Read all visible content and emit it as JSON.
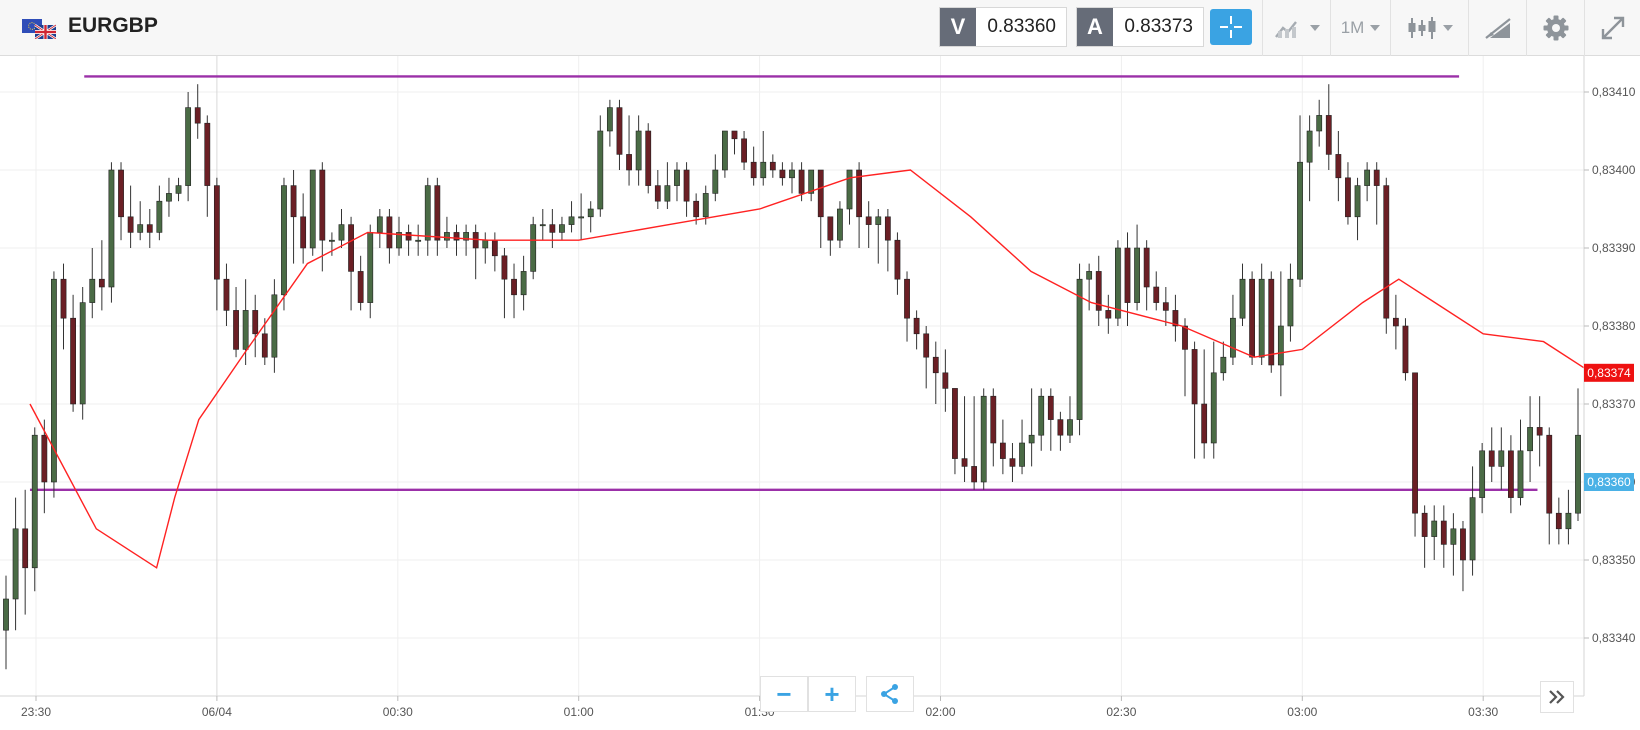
{
  "header": {
    "symbol": "EURGBP",
    "sell": {
      "label": "V",
      "price": "0.83360"
    },
    "buy": {
      "label": "A",
      "price": "0.83373"
    },
    "timeframe": "1M",
    "icons": [
      "flag-eu-uk-icon",
      "crosshair-icon",
      "chart-type-icon",
      "candlestick-icon",
      "draw-tools-icon",
      "gear-icon",
      "fullscreen-icon"
    ]
  },
  "controls": {
    "zoom_out": "−",
    "zoom_in": "+"
  },
  "colors": {
    "accent": "#3aa3e3",
    "bull_candle": "#4a6b45",
    "bear_candle": "#6b1f25",
    "moving_average": "#ff2222",
    "horizontal_lines": "#9b30a8",
    "ask_tag": "#ee1111",
    "bid_tag": "#4ab1e6"
  },
  "chart_data": {
    "type": "candlestick",
    "instrument": "EURGBP",
    "ylim": [
      0.83333,
      0.83416
    ],
    "y_ticks": [
      "0,83340",
      "0,83350",
      "0,83360",
      "0,83370",
      "0,83380",
      "0,83390",
      "0,83400",
      "0,83410"
    ],
    "x_ticks": [
      "23:30",
      "06/04",
      "00:30",
      "01:00",
      "01:30",
      "02:00",
      "02:30",
      "03:00",
      "03:30"
    ],
    "current_price_tags": [
      {
        "label": "0,83374",
        "value": 0.83374,
        "color": "#ee1111"
      },
      {
        "label": "0,83360",
        "value": 0.8336,
        "color": "#4ab1e6"
      }
    ],
    "horizontal_lines": [
      {
        "value": 0.83412,
        "from": "23:38",
        "to": "03:26"
      },
      {
        "value": 0.83359,
        "from": "23:29",
        "to": "03:39"
      }
    ],
    "moving_average": [
      [
        "23:29",
        0.8337
      ],
      [
        "23:40",
        0.83354
      ],
      [
        "23:50",
        0.83349
      ],
      [
        "23:53",
        0.83358
      ],
      [
        "23:57",
        0.83368
      ],
      [
        "00:05",
        0.83377
      ],
      [
        "00:15",
        0.83388
      ],
      [
        "00:25",
        0.83392
      ],
      [
        "00:45",
        0.83391
      ],
      [
        "01:00",
        0.83391
      ],
      [
        "01:15",
        0.83393
      ],
      [
        "01:30",
        0.83395
      ],
      [
        "01:45",
        0.83399
      ],
      [
        "01:55",
        0.834
      ],
      [
        "02:05",
        0.83394
      ],
      [
        "02:15",
        0.83387
      ],
      [
        "02:25",
        0.83383
      ],
      [
        "02:40",
        0.8338
      ],
      [
        "02:52",
        0.83376
      ],
      [
        "03:00",
        0.83377
      ],
      [
        "03:10",
        0.83383
      ],
      [
        "03:16",
        0.83386
      ],
      [
        "03:22",
        0.83383
      ],
      [
        "03:30",
        0.83379
      ],
      [
        "03:40",
        0.83378
      ],
      [
        "03:48",
        0.83374
      ]
    ],
    "candles_source": "1-minute OHLC approximated from the plotted candles",
    "candles": [
      [
        0.83341,
        0.83345,
        0.83336,
        0.83348
      ],
      [
        0.83345,
        0.83354,
        0.83341,
        0.83358
      ],
      [
        0.83354,
        0.83349,
        0.83343,
        0.83359
      ],
      [
        0.83349,
        0.83366,
        0.83346,
        0.83367
      ],
      [
        0.83366,
        0.8336,
        0.83356,
        0.83368
      ],
      [
        0.8336,
        0.83386,
        0.83358,
        0.83387
      ],
      [
        0.83386,
        0.83381,
        0.83377,
        0.83388
      ],
      [
        0.83381,
        0.8337,
        0.83369,
        0.83384
      ],
      [
        0.8337,
        0.83383,
        0.83368,
        0.83385
      ],
      [
        0.83383,
        0.83386,
        0.83381,
        0.8339
      ],
      [
        0.83386,
        0.83385,
        0.83382,
        0.83391
      ],
      [
        0.83385,
        0.834,
        0.83383,
        0.83401
      ],
      [
        0.834,
        0.83394,
        0.83391,
        0.83401
      ],
      [
        0.83394,
        0.83392,
        0.8339,
        0.83398
      ],
      [
        0.83392,
        0.83393,
        0.83391,
        0.83396
      ],
      [
        0.83393,
        0.83392,
        0.8339,
        0.83395
      ],
      [
        0.83392,
        0.83396,
        0.83391,
        0.83398
      ],
      [
        0.83396,
        0.83397,
        0.83394,
        0.83399
      ],
      [
        0.83397,
        0.83398,
        0.83396,
        0.83399
      ],
      [
        0.83398,
        0.83408,
        0.83396,
        0.8341
      ],
      [
        0.83408,
        0.83406,
        0.83404,
        0.83411
      ],
      [
        0.83406,
        0.83398,
        0.83394,
        0.83407
      ],
      [
        0.83398,
        0.83386,
        0.83382,
        0.83399
      ],
      [
        0.83386,
        0.83382,
        0.8338,
        0.83388
      ],
      [
        0.83382,
        0.83377,
        0.83376,
        0.83385
      ],
      [
        0.83377,
        0.83382,
        0.83375,
        0.83386
      ],
      [
        0.83382,
        0.83379,
        0.83376,
        0.83384
      ],
      [
        0.83379,
        0.83376,
        0.83375,
        0.83381
      ],
      [
        0.83376,
        0.83384,
        0.83374,
        0.83386
      ],
      [
        0.83384,
        0.83398,
        0.83382,
        0.83399
      ],
      [
        0.83398,
        0.83394,
        0.83388,
        0.834
      ],
      [
        0.83394,
        0.8339,
        0.83388,
        0.83397
      ],
      [
        0.8339,
        0.834,
        0.83389,
        0.834
      ],
      [
        0.834,
        0.83391,
        0.83387,
        0.83401
      ],
      [
        0.83391,
        0.83391,
        0.83389,
        0.83392
      ],
      [
        0.83391,
        0.83393,
        0.8339,
        0.83395
      ],
      [
        0.83393,
        0.83387,
        0.83382,
        0.83394
      ],
      [
        0.83387,
        0.83383,
        0.83382,
        0.83389
      ],
      [
        0.83383,
        0.83392,
        0.83381,
        0.83393
      ],
      [
        0.83392,
        0.83394,
        0.8339,
        0.83395
      ],
      [
        0.83394,
        0.8339,
        0.83388,
        0.83395
      ],
      [
        0.8339,
        0.83392,
        0.83389,
        0.83394
      ],
      [
        0.83392,
        0.83391,
        0.83389,
        0.83393
      ],
      [
        0.83391,
        0.83391,
        0.83389,
        0.83393
      ],
      [
        0.83391,
        0.83398,
        0.83389,
        0.83399
      ],
      [
        0.83398,
        0.83391,
        0.83389,
        0.83399
      ],
      [
        0.83391,
        0.83392,
        0.8339,
        0.83394
      ],
      [
        0.83392,
        0.83391,
        0.83389,
        0.83393
      ],
      [
        0.83391,
        0.83392,
        0.83389,
        0.83393
      ],
      [
        0.83392,
        0.8339,
        0.83386,
        0.83393
      ],
      [
        0.8339,
        0.83391,
        0.83388,
        0.83392
      ],
      [
        0.83391,
        0.83389,
        0.83387,
        0.83392
      ],
      [
        0.83389,
        0.83386,
        0.83381,
        0.8339
      ],
      [
        0.83386,
        0.83384,
        0.83381,
        0.83388
      ],
      [
        0.83384,
        0.83387,
        0.83382,
        0.83389
      ],
      [
        0.83387,
        0.83393,
        0.83386,
        0.83394
      ],
      [
        0.83393,
        0.83393,
        0.83391,
        0.83395
      ],
      [
        0.83393,
        0.83392,
        0.8339,
        0.83395
      ],
      [
        0.83392,
        0.83393,
        0.83391,
        0.83394
      ],
      [
        0.83393,
        0.83394,
        0.83392,
        0.83396
      ],
      [
        0.83394,
        0.83394,
        0.83391,
        0.83397
      ],
      [
        0.83394,
        0.83395,
        0.83392,
        0.83396
      ],
      [
        0.83395,
        0.83405,
        0.83394,
        0.83407
      ],
      [
        0.83405,
        0.83408,
        0.83403,
        0.83409
      ],
      [
        0.83408,
        0.83402,
        0.834,
        0.83409
      ],
      [
        0.83402,
        0.834,
        0.83398,
        0.83407
      ],
      [
        0.834,
        0.83405,
        0.83398,
        0.83407
      ],
      [
        0.83405,
        0.83398,
        0.83397,
        0.83406
      ],
      [
        0.83398,
        0.83396,
        0.83395,
        0.834
      ],
      [
        0.83396,
        0.83398,
        0.83395,
        0.83401
      ],
      [
        0.83398,
        0.834,
        0.83396,
        0.83401
      ],
      [
        0.834,
        0.83396,
        0.83394,
        0.83401
      ],
      [
        0.83396,
        0.83394,
        0.83393,
        0.83397
      ],
      [
        0.83394,
        0.83397,
        0.83393,
        0.83398
      ],
      [
        0.83397,
        0.834,
        0.83396,
        0.83402
      ],
      [
        0.834,
        0.83405,
        0.83399,
        0.83405
      ],
      [
        0.83405,
        0.83404,
        0.83402,
        0.83405
      ],
      [
        0.83404,
        0.83401,
        0.834,
        0.83405
      ],
      [
        0.83401,
        0.83399,
        0.83398,
        0.83403
      ],
      [
        0.83399,
        0.83401,
        0.83398,
        0.83405
      ],
      [
        0.83401,
        0.834,
        0.83399,
        0.83402
      ],
      [
        0.834,
        0.83399,
        0.83398,
        0.83401
      ],
      [
        0.83399,
        0.834,
        0.83397,
        0.83401
      ],
      [
        0.834,
        0.83397,
        0.83396,
        0.83401
      ],
      [
        0.83397,
        0.834,
        0.83396,
        0.834
      ],
      [
        0.834,
        0.83394,
        0.8339,
        0.834
      ],
      [
        0.83394,
        0.83391,
        0.83389,
        0.83394
      ],
      [
        0.83391,
        0.83395,
        0.8339,
        0.83396
      ],
      [
        0.83395,
        0.834,
        0.83393,
        0.834
      ],
      [
        0.834,
        0.83394,
        0.8339,
        0.83401
      ],
      [
        0.83394,
        0.83393,
        0.8339,
        0.83396
      ],
      [
        0.83393,
        0.83394,
        0.83388,
        0.83395
      ],
      [
        0.83394,
        0.83391,
        0.83387,
        0.83395
      ],
      [
        0.83391,
        0.83386,
        0.83384,
        0.83392
      ],
      [
        0.83386,
        0.83381,
        0.83378,
        0.83387
      ],
      [
        0.83381,
        0.83379,
        0.83377,
        0.83382
      ],
      [
        0.83379,
        0.83376,
        0.83372,
        0.8338
      ],
      [
        0.83376,
        0.83374,
        0.8337,
        0.83378
      ],
      [
        0.83374,
        0.83372,
        0.83369,
        0.83377
      ],
      [
        0.83372,
        0.83363,
        0.83361,
        0.83372
      ],
      [
        0.83363,
        0.83362,
        0.8336,
        0.83371
      ],
      [
        0.83362,
        0.8336,
        0.83359,
        0.83371
      ],
      [
        0.8336,
        0.83371,
        0.83359,
        0.83372
      ],
      [
        0.83371,
        0.83365,
        0.83362,
        0.83372
      ],
      [
        0.83365,
        0.83363,
        0.83361,
        0.83368
      ],
      [
        0.83363,
        0.83362,
        0.8336,
        0.83365
      ],
      [
        0.83362,
        0.83365,
        0.83361,
        0.83368
      ],
      [
        0.83365,
        0.83366,
        0.83362,
        0.83372
      ],
      [
        0.83366,
        0.83371,
        0.83364,
        0.83372
      ],
      [
        0.83371,
        0.83368,
        0.83364,
        0.83372
      ],
      [
        0.83368,
        0.83366,
        0.83364,
        0.83369
      ],
      [
        0.83366,
        0.83368,
        0.83365,
        0.83371
      ],
      [
        0.83368,
        0.83386,
        0.83366,
        0.83388
      ],
      [
        0.83386,
        0.83387,
        0.83382,
        0.83388
      ],
      [
        0.83387,
        0.83382,
        0.8338,
        0.83389
      ],
      [
        0.83382,
        0.83381,
        0.83379,
        0.83384
      ],
      [
        0.83381,
        0.8339,
        0.8338,
        0.83391
      ],
      [
        0.8339,
        0.83383,
        0.8338,
        0.83392
      ],
      [
        0.83383,
        0.8339,
        0.83382,
        0.83393
      ],
      [
        0.8339,
        0.83385,
        0.83382,
        0.83391
      ],
      [
        0.83385,
        0.83383,
        0.83382,
        0.83387
      ],
      [
        0.83383,
        0.83382,
        0.8338,
        0.83385
      ],
      [
        0.83382,
        0.8338,
        0.83378,
        0.83384
      ],
      [
        0.8338,
        0.83377,
        0.83371,
        0.83381
      ],
      [
        0.83377,
        0.8337,
        0.83363,
        0.83378
      ],
      [
        0.8337,
        0.83365,
        0.83363,
        0.83377
      ],
      [
        0.83365,
        0.83374,
        0.83363,
        0.83378
      ],
      [
        0.83374,
        0.83376,
        0.83373,
        0.83378
      ],
      [
        0.83376,
        0.83381,
        0.83375,
        0.83384
      ],
      [
        0.83381,
        0.83386,
        0.8338,
        0.83388
      ],
      [
        0.83386,
        0.83376,
        0.83375,
        0.83387
      ],
      [
        0.83376,
        0.83386,
        0.83375,
        0.83388
      ],
      [
        0.83386,
        0.83375,
        0.83374,
        0.83387
      ],
      [
        0.83375,
        0.8338,
        0.83371,
        0.83387
      ],
      [
        0.8338,
        0.83386,
        0.83378,
        0.83388
      ],
      [
        0.83386,
        0.83401,
        0.83385,
        0.83407
      ],
      [
        0.83401,
        0.83405,
        0.83396,
        0.83407
      ],
      [
        0.83405,
        0.83407,
        0.83403,
        0.83409
      ],
      [
        0.83407,
        0.83402,
        0.834,
        0.83411
      ],
      [
        0.83402,
        0.83399,
        0.83396,
        0.83405
      ],
      [
        0.83399,
        0.83394,
        0.83393,
        0.83401
      ],
      [
        0.83394,
        0.83398,
        0.83391,
        0.83399
      ],
      [
        0.83398,
        0.834,
        0.83396,
        0.83401
      ],
      [
        0.834,
        0.83398,
        0.83393,
        0.83401
      ],
      [
        0.83398,
        0.83381,
        0.83379,
        0.83399
      ],
      [
        0.83381,
        0.8338,
        0.83377,
        0.83384
      ],
      [
        0.8338,
        0.83374,
        0.83373,
        0.83381
      ],
      [
        0.83374,
        0.83356,
        0.83353,
        0.83374
      ],
      [
        0.83356,
        0.83353,
        0.83349,
        0.83357
      ],
      [
        0.83353,
        0.83355,
        0.8335,
        0.83357
      ],
      [
        0.83355,
        0.83352,
        0.83349,
        0.83357
      ],
      [
        0.83352,
        0.83354,
        0.83348,
        0.83356
      ],
      [
        0.83354,
        0.8335,
        0.83346,
        0.83355
      ],
      [
        0.8335,
        0.83358,
        0.83348,
        0.83362
      ],
      [
        0.83358,
        0.83364,
        0.83356,
        0.83365
      ],
      [
        0.83364,
        0.83362,
        0.8336,
        0.83367
      ],
      [
        0.83362,
        0.83364,
        0.83359,
        0.83367
      ],
      [
        0.83364,
        0.83358,
        0.83356,
        0.83366
      ],
      [
        0.83358,
        0.83364,
        0.83357,
        0.83368
      ],
      [
        0.83364,
        0.83367,
        0.8336,
        0.83371
      ],
      [
        0.83367,
        0.83366,
        0.83362,
        0.83371
      ],
      [
        0.83366,
        0.83356,
        0.83352,
        0.83367
      ],
      [
        0.83356,
        0.83354,
        0.83352,
        0.83358
      ],
      [
        0.83354,
        0.83356,
        0.83352,
        0.83359
      ],
      [
        0.83356,
        0.83366,
        0.83355,
        0.83372
      ]
    ]
  }
}
